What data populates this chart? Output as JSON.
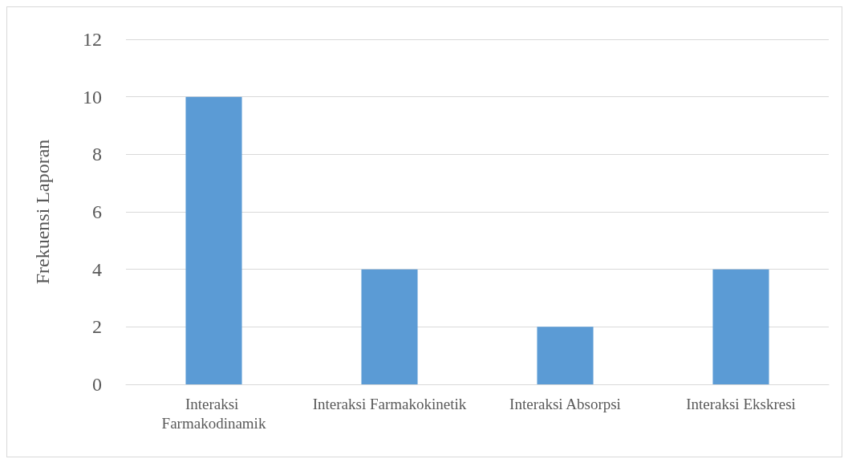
{
  "chart_data": {
    "type": "bar",
    "ylabel": "Frekuensi Laporan",
    "categories": [
      "Interaksi Farmakodinamik",
      "Interaksi Farmakokinetik",
      "Interaksi Absorpsi",
      "Interaksi Ekskresi"
    ],
    "values": [
      10,
      4,
      2,
      4
    ],
    "color": "#5b9bd5",
    "ylim": [
      0,
      12
    ],
    "yticks": [
      0,
      2,
      4,
      6,
      8,
      10,
      12
    ],
    "grid": "y"
  }
}
